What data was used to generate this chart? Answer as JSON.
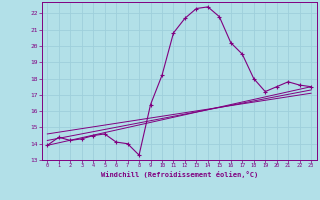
{
  "xlabel": "Windchill (Refroidissement éolien,°C)",
  "background_color": "#b2e0e8",
  "grid_color": "#9ecfdb",
  "line_color": "#800080",
  "xlim": [
    -0.5,
    23.5
  ],
  "ylim": [
    13,
    22.7
  ],
  "yticks": [
    13,
    14,
    15,
    16,
    17,
    18,
    19,
    20,
    21,
    22
  ],
  "xticks": [
    0,
    1,
    2,
    3,
    4,
    5,
    6,
    7,
    8,
    9,
    10,
    11,
    12,
    13,
    14,
    15,
    16,
    17,
    18,
    19,
    20,
    21,
    22,
    23
  ],
  "main_line_x": [
    0,
    1,
    2,
    3,
    4,
    5,
    6,
    7,
    8,
    9,
    10,
    11,
    12,
    13,
    14,
    15,
    16,
    17,
    18,
    19,
    20,
    21,
    22,
    23
  ],
  "main_line_y": [
    13.9,
    14.4,
    14.2,
    14.3,
    14.5,
    14.6,
    14.1,
    14.0,
    13.3,
    16.4,
    18.2,
    20.8,
    21.7,
    22.3,
    22.4,
    21.8,
    20.2,
    19.5,
    18.0,
    17.2,
    17.5,
    17.8,
    17.6,
    17.5
  ],
  "line2_x": [
    0,
    23
  ],
  "line2_y": [
    13.9,
    17.5
  ],
  "line3_x": [
    0,
    23
  ],
  "line3_y": [
    14.2,
    17.3
  ],
  "line4_x": [
    0,
    23
  ],
  "line4_y": [
    14.6,
    17.1
  ]
}
